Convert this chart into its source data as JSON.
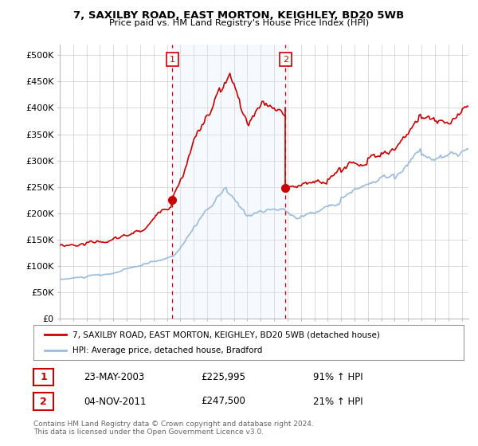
{
  "title": "7, SAXILBY ROAD, EAST MORTON, KEIGHLEY, BD20 5WB",
  "subtitle": "Price paid vs. HM Land Registry's House Price Index (HPI)",
  "yticks": [
    0,
    50000,
    100000,
    150000,
    200000,
    250000,
    300000,
    350000,
    400000,
    450000,
    500000
  ],
  "ytick_labels": [
    "£0",
    "£50K",
    "£100K",
    "£150K",
    "£200K",
    "£250K",
    "£300K",
    "£350K",
    "£400K",
    "£450K",
    "£500K"
  ],
  "sale1_date_num": 2003.39,
  "sale1_price": 225995,
  "sale1_label": "1",
  "sale1_date_str": "23-MAY-2003",
  "sale1_price_str": "£225,995",
  "sale1_hpi_str": "91% ↑ HPI",
  "sale2_date_num": 2011.84,
  "sale2_price": 247500,
  "sale2_label": "2",
  "sale2_date_str": "04-NOV-2011",
  "sale2_price_str": "£247,500",
  "sale2_hpi_str": "21% ↑ HPI",
  "red_color": "#cc0000",
  "blue_color": "#99bbdd",
  "blue_fill": "#ddeeff",
  "legend_label1": "7, SAXILBY ROAD, EAST MORTON, KEIGHLEY, BD20 5WB (detached house)",
  "legend_label2": "HPI: Average price, detached house, Bradford",
  "footnote": "Contains HM Land Registry data © Crown copyright and database right 2024.\nThis data is licensed under the Open Government Licence v3.0.",
  "xmin": 1995.0,
  "xmax": 2025.5,
  "ymin": 0,
  "ymax": 520000,
  "background_color": "#ffffff",
  "grid_color": "#cccccc"
}
